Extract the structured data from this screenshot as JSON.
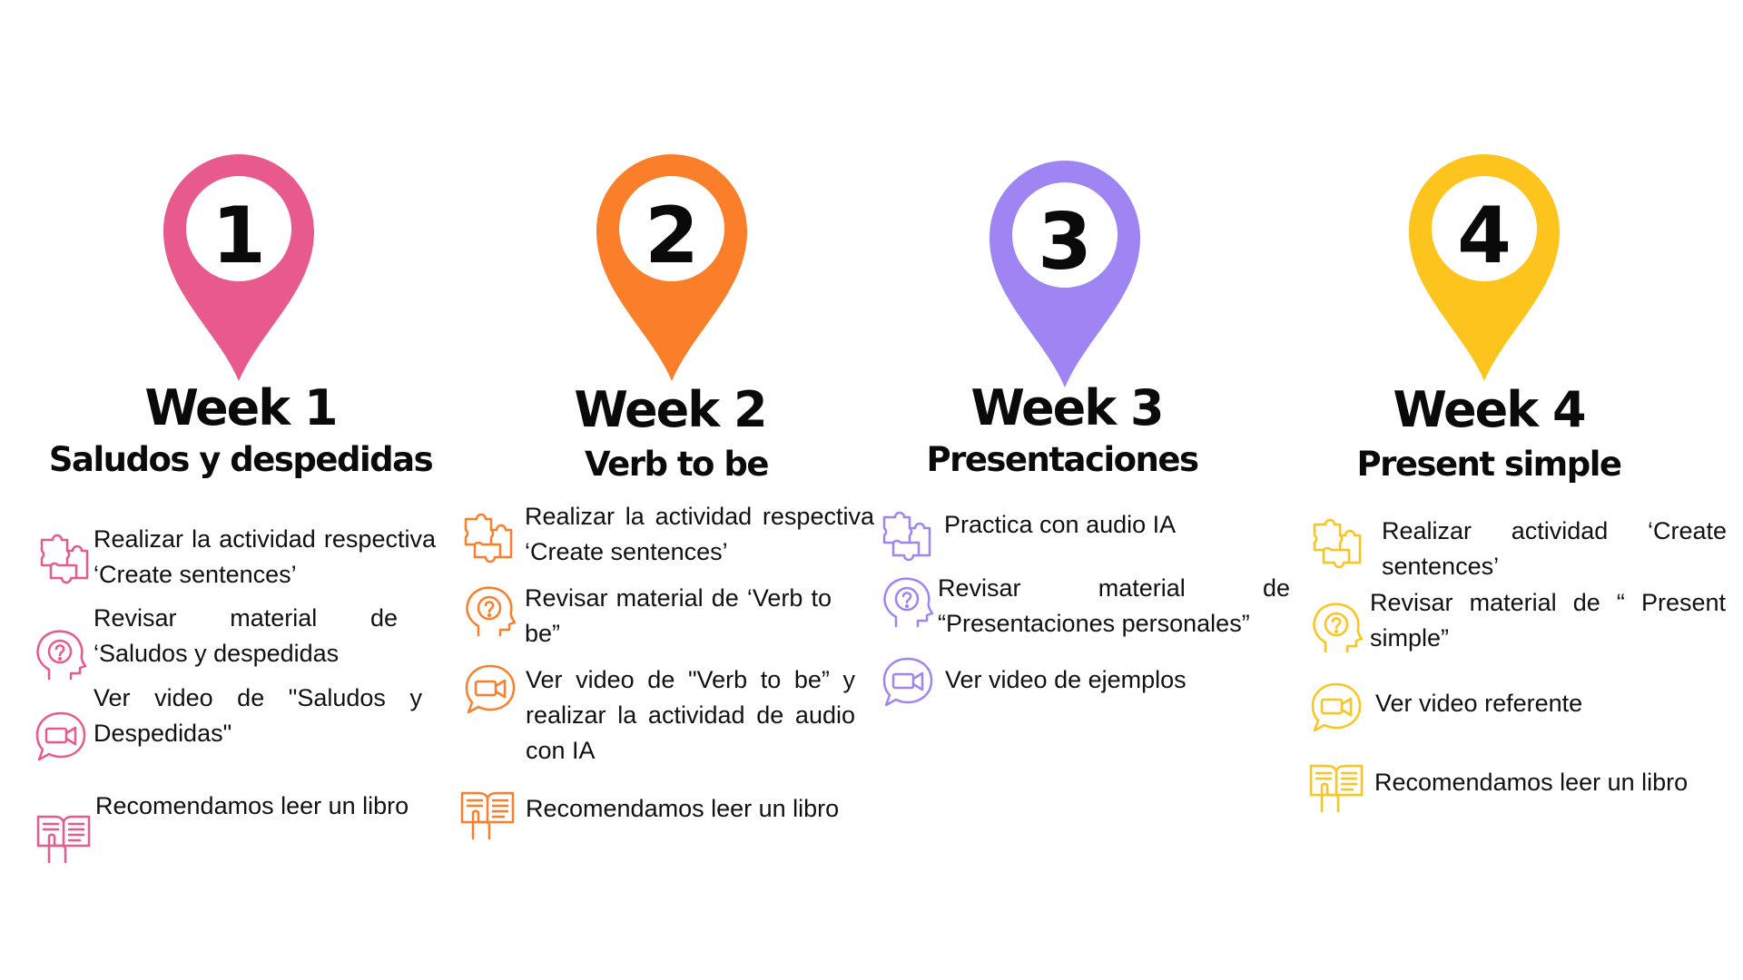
{
  "weeks": [
    {
      "number": "1",
      "title": "Week 1",
      "subtitle": "Saludos y despedidas",
      "color": "#E85A8C",
      "items": [
        {
          "icon": "puzzle-icon",
          "text": "Realizar la actividad respectiva ‘Create sentences’"
        },
        {
          "icon": "question-head-icon",
          "text": "Revisar material de ‘Saludos y despedidas"
        },
        {
          "icon": "video-chat-icon",
          "text": "Ver video de \"Saludos y Despedidas\""
        },
        {
          "icon": "book-reading-icon",
          "text": "Recomendamos leer un libro"
        }
      ]
    },
    {
      "number": "2",
      "title": "Week 2",
      "subtitle": "Verb to be",
      "color": "#FB7F2B",
      "items": [
        {
          "icon": "puzzle-icon",
          "text": "Realizar la actividad respectiva ‘Create sentences’"
        },
        {
          "icon": "question-head-icon",
          "text": "Revisar material de ‘Verb to be”"
        },
        {
          "icon": "video-chat-icon",
          "text": "Ver video de \"Verb to be” y realizar la actividad de audio con IA"
        },
        {
          "icon": "book-reading-icon",
          "text": "Recomendamos leer un libro"
        }
      ]
    },
    {
      "number": "3",
      "title": "Week 3",
      "subtitle": "Presentaciones",
      "color": "#9E85F3",
      "items": [
        {
          "icon": "puzzle-icon",
          "text": "Practica con audio IA"
        },
        {
          "icon": "question-head-icon",
          "text": "Revisar material de “Presentaciones personales”"
        },
        {
          "icon": "video-chat-icon",
          "text": "Ver video de ejemplos"
        }
      ]
    },
    {
      "number": "4",
      "title": "Week 4",
      "subtitle": "Present simple",
      "color": "#FCC41C",
      "items": [
        {
          "icon": "puzzle-icon",
          "text": "Realizar actividad ‘Create sentences’"
        },
        {
          "icon": "question-head-icon",
          "text": "Revisar material de “ Present simple”"
        },
        {
          "icon": "video-chat-icon",
          "text": "Ver video referente"
        },
        {
          "icon": "book-reading-icon",
          "text": "Recomendamos leer un libro"
        }
      ]
    }
  ]
}
